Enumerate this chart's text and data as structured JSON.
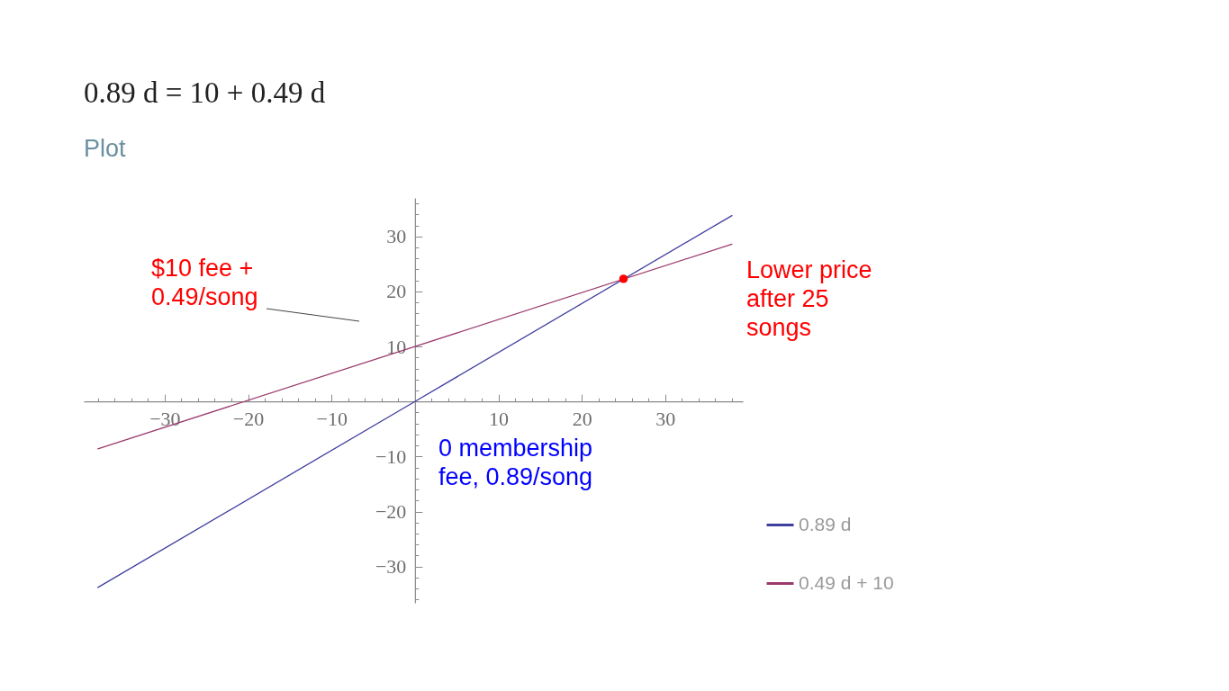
{
  "chart_data": {
    "type": "line",
    "title": "0.89 d = 10 + 0.49 d",
    "subtitle": "Plot",
    "series": [
      {
        "name": "0.89 d",
        "color": "#3f3f9f",
        "x": [
          -38,
          0,
          38
        ],
        "values": [
          -33.8,
          0,
          33.8
        ]
      },
      {
        "name": "0.49 d + 10",
        "color": "#9b3b6d",
        "x": [
          -38,
          0,
          38
        ],
        "values": [
          -8.6,
          10,
          28.6
        ]
      },
      {
        "type": "scatter",
        "color": "#ff0000",
        "x": [
          25
        ],
        "values": [
          22.3
        ]
      }
    ],
    "xlim": [
      -39.7,
      39.3
    ],
    "ylim": [
      -36.6,
      37.0
    ],
    "xticks": [
      {
        "value": -38,
        "label": null
      },
      {
        "value": -36,
        "label": null
      },
      {
        "value": -34,
        "label": null
      },
      {
        "value": -32,
        "label": null
      },
      -30,
      {
        "value": -28,
        "label": null
      },
      {
        "value": -26,
        "label": null
      },
      {
        "value": -24,
        "label": null
      },
      {
        "value": -22,
        "label": null
      },
      -20,
      {
        "value": -18,
        "label": null
      },
      {
        "value": -16,
        "label": null
      },
      {
        "value": -14,
        "label": null
      },
      {
        "value": -12,
        "label": null
      },
      -10,
      {
        "value": -8,
        "label": null
      },
      {
        "value": -6,
        "label": null
      },
      {
        "value": -4,
        "label": null
      },
      {
        "value": -2,
        "label": null
      },
      {
        "value": 2,
        "label": null
      },
      {
        "value": 4,
        "label": null
      },
      {
        "value": 6,
        "label": null
      },
      {
        "value": 8,
        "label": null
      },
      10,
      {
        "value": 12,
        "label": null
      },
      {
        "value": 14,
        "label": null
      },
      {
        "value": 16,
        "label": null
      },
      {
        "value": 18,
        "label": null
      },
      20,
      {
        "value": 22,
        "label": null
      },
      {
        "value": 24,
        "label": null
      },
      {
        "value": 26,
        "label": null
      },
      {
        "value": 28,
        "label": null
      },
      30,
      {
        "value": 32,
        "label": null
      },
      {
        "value": 34,
        "label": null
      },
      {
        "value": 36,
        "label": null
      },
      {
        "value": 38,
        "label": null
      }
    ],
    "yticks": [
      {
        "value": -36,
        "label": null
      },
      {
        "value": -34,
        "label": null
      },
      {
        "value": -32,
        "label": null
      },
      -30,
      {
        "value": -28,
        "label": null
      },
      {
        "value": -26,
        "label": null
      },
      {
        "value": -24,
        "label": null
      },
      {
        "value": -22,
        "label": null
      },
      -20,
      {
        "value": -18,
        "label": null
      },
      {
        "value": -16,
        "label": null
      },
      {
        "value": -14,
        "label": null
      },
      {
        "value": -12,
        "label": null
      },
      -10,
      {
        "value": -8,
        "label": null
      },
      {
        "value": -6,
        "label": null
      },
      {
        "value": -4,
        "label": null
      },
      {
        "value": -2,
        "label": null
      },
      {
        "value": 2,
        "label": null
      },
      {
        "value": 4,
        "label": null
      },
      {
        "value": 6,
        "label": null
      },
      {
        "value": 8,
        "label": null
      },
      10,
      {
        "value": 12,
        "label": null
      },
      {
        "value": 14,
        "label": null
      },
      {
        "value": 16,
        "label": null
      },
      {
        "value": 18,
        "label": null
      },
      20,
      {
        "value": 22,
        "label": null
      },
      {
        "value": 24,
        "label": null
      },
      {
        "value": 26,
        "label": null
      },
      {
        "value": 28,
        "label": null
      },
      30,
      {
        "value": 32,
        "label": null
      },
      {
        "value": 34,
        "label": null
      },
      {
        "value": 36,
        "label": null
      }
    ],
    "legend": "bottom right",
    "annotations": [
      "$10 fee + 0.49/song",
      "0 membership fee, 0.89/song",
      "Lower price after 25 songs"
    ]
  }
}
